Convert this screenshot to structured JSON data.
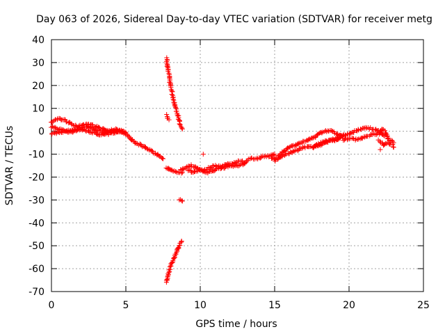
{
  "chart_data": {
    "type": "scatter",
    "title": "Day 063 of 2026, Sidereal Day-to-day VTEC variation (SDTVAR) for receiver metg",
    "xlabel": "GPS time / hours",
    "ylabel": "SDTVAR / TECUs",
    "xlim": [
      0,
      25
    ],
    "ylim": [
      -70,
      40
    ],
    "xticks": [
      0,
      5,
      10,
      15,
      20,
      25
    ],
    "yticks": [
      -70,
      -60,
      -50,
      -40,
      -30,
      -20,
      -10,
      0,
      10,
      20,
      30,
      40
    ],
    "grid": true,
    "marker": "+",
    "color": "#ff0000",
    "series": [
      {
        "name": "SDTVAR",
        "tracks": [
          [
            [
              0.0,
              -1
            ],
            [
              0.5,
              -0.5
            ],
            [
              1.0,
              0
            ],
            [
              1.5,
              0.5
            ],
            [
              2.0,
              1
            ],
            [
              2.5,
              0
            ],
            [
              3.0,
              -1
            ],
            [
              3.5,
              -1.5
            ],
            [
              4.0,
              -1
            ],
            [
              4.5,
              0
            ],
            [
              5.0,
              -1
            ],
            [
              5.3,
              -3
            ],
            [
              5.6,
              -5
            ],
            [
              6.0,
              -6
            ],
            [
              6.3,
              -7
            ]
          ],
          [
            [
              0.0,
              4
            ],
            [
              0.3,
              5
            ],
            [
              0.6,
              5.5
            ],
            [
              1.0,
              4.5
            ],
            [
              1.4,
              3
            ],
            [
              1.8,
              2
            ],
            [
              2.2,
              3
            ],
            [
              2.6,
              3
            ],
            [
              3.0,
              2
            ],
            [
              3.4,
              1
            ],
            [
              3.8,
              0
            ],
            [
              4.2,
              0
            ],
            [
              4.6,
              0
            ],
            [
              5.0,
              -0.5
            ]
          ],
          [
            [
              0.0,
              2
            ],
            [
              0.4,
              1
            ],
            [
              0.8,
              0.5
            ],
            [
              1.2,
              -0.5
            ],
            [
              1.6,
              0
            ],
            [
              2.0,
              1.5
            ],
            [
              2.4,
              2
            ],
            [
              2.8,
              1
            ],
            [
              3.2,
              0
            ],
            [
              3.6,
              -0.5
            ],
            [
              4.0,
              0.5
            ],
            [
              4.4,
              0.8
            ],
            [
              4.8,
              0
            ]
          ],
          [
            [
              6.3,
              -7
            ],
            [
              6.8,
              -9
            ],
            [
              7.2,
              -10.5
            ],
            [
              7.5,
              -12
            ]
          ],
          [
            [
              7.7,
              -16
            ],
            [
              8.0,
              -17
            ],
            [
              8.4,
              -18
            ],
            [
              8.8,
              -18
            ]
          ],
          [
            [
              8.6,
              -30
            ],
            [
              8.8,
              -30.5
            ]
          ],
          [
            [
              7.75,
              -66
            ],
            [
              7.85,
              -62
            ],
            [
              8.0,
              -59
            ],
            [
              8.2,
              -56
            ],
            [
              8.4,
              -53
            ],
            [
              8.6,
              -50
            ],
            [
              8.75,
              -48
            ]
          ],
          [
            [
              7.75,
              7
            ],
            [
              7.8,
              6
            ],
            [
              7.9,
              5
            ]
          ],
          [
            [
              7.75,
              32
            ],
            [
              7.8,
              28
            ],
            [
              7.9,
              25
            ],
            [
              7.95,
              22
            ],
            [
              8.0,
              20
            ],
            [
              8.1,
              17
            ],
            [
              8.2,
              14
            ],
            [
              8.35,
              10
            ],
            [
              8.5,
              7
            ],
            [
              8.65,
              3
            ],
            [
              8.8,
              1
            ]
          ],
          [
            [
              8.7,
              -17
            ],
            [
              9.0,
              -16
            ],
            [
              9.4,
              -15
            ],
            [
              9.8,
              -16
            ],
            [
              10.2,
              -17
            ],
            [
              10.6,
              -16
            ],
            [
              11.0,
              -15
            ],
            [
              11.4,
              -15.5
            ],
            [
              11.8,
              -14
            ],
            [
              12.2,
              -14
            ],
            [
              12.6,
              -13
            ],
            [
              13.0,
              -13.5
            ],
            [
              13.4,
              -12
            ],
            [
              13.8,
              -12
            ],
            [
              14.2,
              -11
            ],
            [
              14.6,
              -11
            ],
            [
              15.0,
              -10
            ]
          ],
          [
            [
              9.2,
              -17
            ],
            [
              9.6,
              -18
            ],
            [
              10.0,
              -17
            ],
            [
              10.5,
              -18
            ],
            [
              11.0,
              -17
            ],
            [
              11.5,
              -16
            ],
            [
              12.0,
              -15
            ],
            [
              12.5,
              -15
            ],
            [
              13.0,
              -14
            ]
          ],
          [
            [
              10.2,
              -10
            ]
          ],
          [
            [
              15.0,
              -13
            ],
            [
              15.4,
              -11
            ],
            [
              15.8,
              -10
            ],
            [
              16.2,
              -9
            ],
            [
              16.6,
              -8
            ],
            [
              17.0,
              -7
            ],
            [
              17.4,
              -7
            ],
            [
              17.8,
              -6
            ],
            [
              18.2,
              -5
            ],
            [
              18.6,
              -4
            ],
            [
              19.0,
              -4
            ],
            [
              19.4,
              -3
            ]
          ],
          [
            [
              14.8,
              -12
            ],
            [
              15.2,
              -11
            ],
            [
              15.6,
              -9
            ],
            [
              16.0,
              -7
            ],
            [
              16.4,
              -6
            ],
            [
              16.8,
              -5
            ],
            [
              17.2,
              -4
            ],
            [
              17.6,
              -3
            ],
            [
              18.0,
              -1
            ],
            [
              18.4,
              0
            ],
            [
              18.8,
              0
            ],
            [
              19.2,
              -1
            ],
            [
              19.6,
              -2
            ]
          ],
          [
            [
              17.6,
              -7
            ],
            [
              18.0,
              -6
            ],
            [
              18.4,
              -5
            ],
            [
              18.8,
              -4
            ],
            [
              19.2,
              -3
            ],
            [
              19.6,
              -2
            ],
            [
              20.0,
              -1
            ],
            [
              20.4,
              0
            ],
            [
              20.8,
              1
            ],
            [
              21.2,
              1.5
            ],
            [
              21.6,
              1
            ],
            [
              22.0,
              0
            ],
            [
              22.4,
              -2
            ]
          ],
          [
            [
              19.6,
              -4
            ],
            [
              20.0,
              -3
            ],
            [
              20.4,
              -3.5
            ],
            [
              20.8,
              -3
            ],
            [
              21.2,
              -2
            ],
            [
              21.6,
              -1.5
            ],
            [
              22.0,
              -1
            ],
            [
              22.2,
              1
            ],
            [
              22.4,
              0
            ],
            [
              22.6,
              -3
            ],
            [
              22.8,
              -4
            ],
            [
              23.0,
              -5
            ]
          ],
          [
            [
              22.0,
              -4
            ],
            [
              22.3,
              -6
            ],
            [
              22.6,
              -5
            ],
            [
              22.9,
              -6
            ],
            [
              23.0,
              -7
            ]
          ],
          [
            [
              22.1,
              -8
            ]
          ]
        ]
      }
    ]
  }
}
